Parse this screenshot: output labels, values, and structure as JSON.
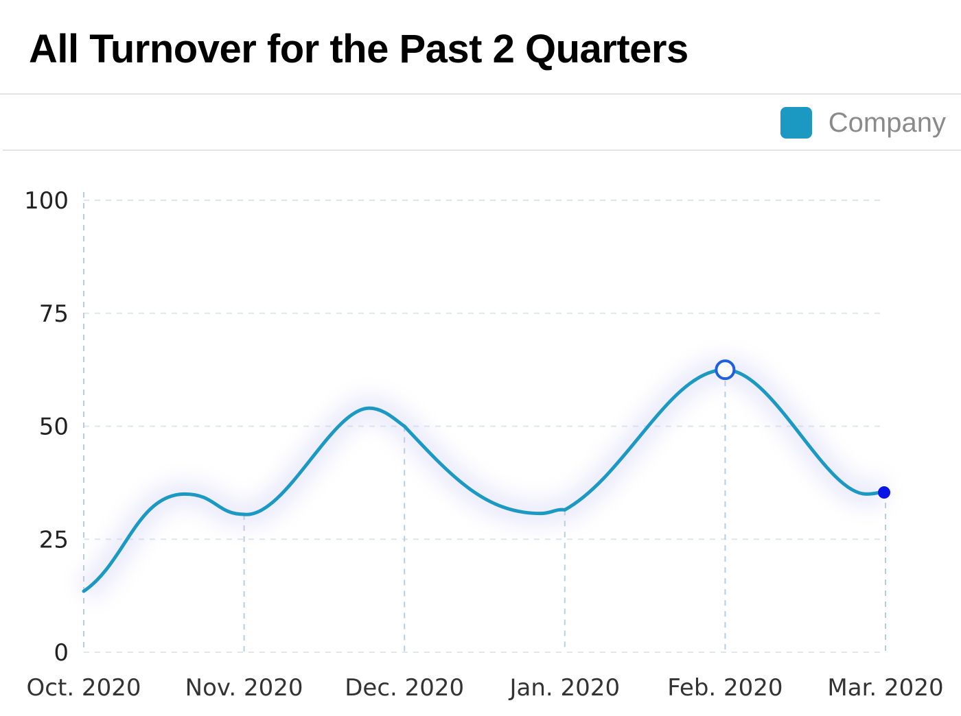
{
  "page": {
    "title": "All Turnover for the Past 2 Quarters"
  },
  "legend": {
    "label": "Company",
    "color": "#1b99c2"
  },
  "colors": {
    "line": "#1b99c2",
    "grid": "#dfe5ee",
    "vgrid": "#b6cde6",
    "highlight_marker": "#1f5fe0",
    "end_marker": "#0a14e6"
  },
  "chart_data": {
    "type": "line",
    "title": "All Turnover for the Past 2 Quarters",
    "xlabel": "",
    "ylabel": "",
    "categories": [
      "Oct. 2020",
      "Nov. 2020",
      "Dec. 2020",
      "Jan. 2020",
      "Feb. 2020",
      "Mar. 2020"
    ],
    "y_ticks": [
      0,
      25,
      50,
      75,
      100
    ],
    "ylim": [
      0,
      100
    ],
    "grid": true,
    "legend_position": "top-right",
    "smooth": true,
    "series": [
      {
        "name": "Company",
        "x": [
          "Oct. 2020",
          "Nov. 2020",
          "Dec. 2020",
          "Jan. 2020",
          "Feb. 2020",
          "Mar. 2020"
        ],
        "values": [
          13.5,
          30.5,
          50,
          31.5,
          62.5,
          35.5
        ]
      }
    ],
    "highlighted_point": {
      "category": "Feb. 2020",
      "value": 62.5
    }
  }
}
